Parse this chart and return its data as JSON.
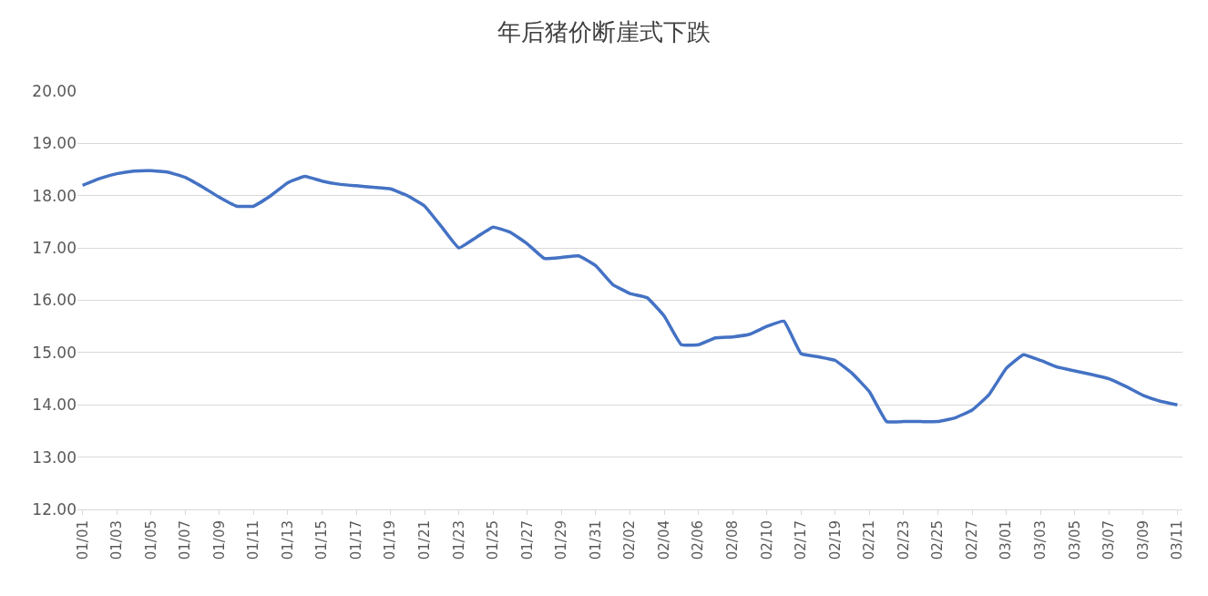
{
  "chart_data": {
    "type": "line",
    "title": "年后猪价断崖式下跌",
    "categories": [
      "01/01",
      null,
      "01/03",
      null,
      "01/05",
      null,
      "01/07",
      null,
      "01/09",
      null,
      "01/11",
      null,
      "01/13",
      null,
      "01/15",
      null,
      "01/17",
      null,
      "01/19",
      null,
      "01/21",
      null,
      "01/23",
      null,
      "01/25",
      null,
      "01/27",
      null,
      "01/29",
      null,
      "01/31",
      null,
      "02/02",
      null,
      "02/04",
      null,
      "02/06",
      null,
      "02/08",
      null,
      "02/10",
      null,
      "02/17",
      null,
      "02/19",
      null,
      "02/21",
      null,
      "02/23",
      null,
      "02/25",
      null,
      "02/27",
      null,
      "03/01",
      null,
      "03/03",
      null,
      "03/05",
      null,
      "03/07",
      null,
      "03/09",
      null,
      "03/11"
    ],
    "series": [
      {
        "color": "#4472c4",
        "values": [
          18.2,
          18.33,
          18.42,
          18.47,
          18.48,
          18.45,
          18.35,
          18.17,
          17.97,
          17.8,
          17.8,
          18.0,
          18.25,
          18.37,
          18.28,
          18.22,
          18.19,
          18.16,
          18.13,
          18.0,
          17.8,
          17.4,
          17.0,
          17.2,
          17.4,
          17.3,
          17.08,
          16.8,
          16.82,
          16.85,
          16.66,
          16.3,
          16.13,
          16.05,
          15.7,
          15.15,
          15.15,
          15.28,
          15.3,
          15.35,
          15.5,
          15.6,
          14.98,
          14.92,
          14.85,
          14.6,
          14.25,
          13.68,
          13.68,
          13.68,
          13.68,
          13.75,
          13.9,
          14.2,
          14.7,
          14.96,
          14.85,
          14.72,
          14.65,
          14.58,
          14.5,
          14.35,
          14.18,
          14.07,
          14.0
        ]
      }
    ],
    "ylim": [
      12,
      20
    ],
    "yticks": [
      {
        "value": 12,
        "label": "12.00"
      },
      {
        "value": 13,
        "label": "13.00"
      },
      {
        "value": 14,
        "label": "14.00"
      },
      {
        "value": 15,
        "label": "15.00"
      },
      {
        "value": 16,
        "label": "16.00"
      },
      {
        "value": 17,
        "label": "17.00"
      },
      {
        "value": 18,
        "label": "18.00"
      },
      {
        "value": 19,
        "label": "19.00"
      },
      {
        "value": 20,
        "label": "20.00"
      }
    ],
    "grid": "y",
    "marker": "none",
    "line_style": "solid"
  }
}
